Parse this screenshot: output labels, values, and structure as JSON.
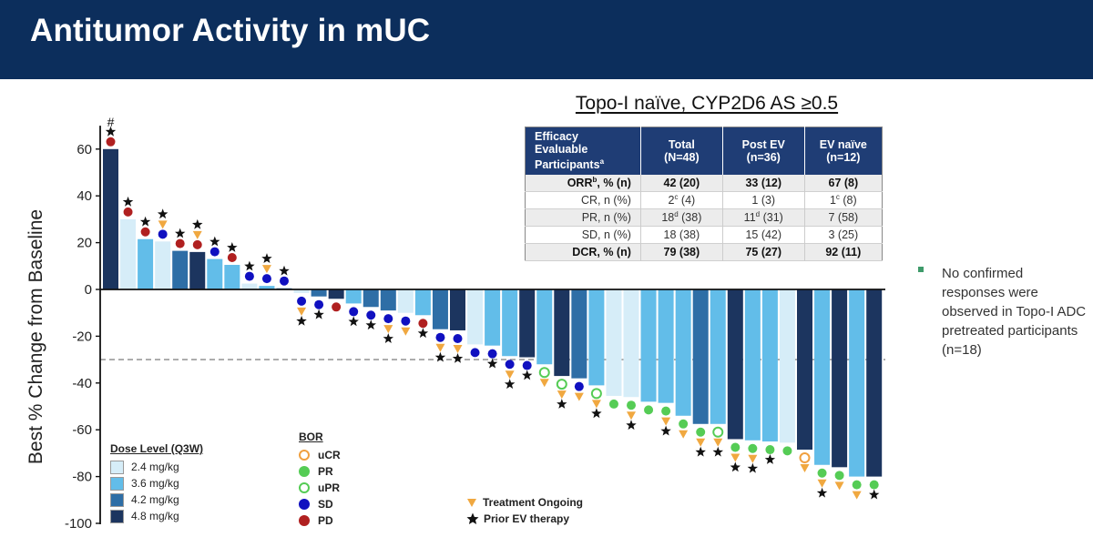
{
  "title": "Antitumor Activity in mUC",
  "colors": {
    "header_bg": "#0c2e5c",
    "dose_2_4": "#d6edf8",
    "dose_3_6": "#62bde9",
    "dose_4_2": "#2e6ea6",
    "dose_4_8": "#1c355f",
    "ucr": "#f0a040",
    "pr": "#55cc55",
    "sd": "#1010c0",
    "pd": "#b02020",
    "ongoing": "#f0a840",
    "prior_ev": "#111111"
  },
  "table": {
    "title": "Topo-I naïve, CYP2D6 AS ≥0.5",
    "header": {
      "col0_line1": "Efficacy",
      "col0_line2": "Evaluable",
      "col0_line3": "Participants",
      "col0_sup": "a",
      "col1_line1": "Total",
      "col1_line2": "(N=48)",
      "col2_line1": "Post EV",
      "col2_line2": "(n=36)",
      "col3_line1": "EV naïve",
      "col3_line2": "(n=12)"
    },
    "rows": [
      {
        "label": "ORR",
        "label_sup": "b",
        "label_tail": ", % (n)",
        "c1": "42 (20)",
        "c1_sup": "",
        "c1_tail": "",
        "c2": "33 (12)",
        "c2_sup": "",
        "c2_tail": "",
        "c3": "67 (8)",
        "c3_sup": "",
        "c3_tail": ""
      },
      {
        "label": "CR, n (%)",
        "label_sup": "",
        "label_tail": "",
        "c1": "2",
        "c1_sup": "c",
        "c1_tail": " (4)",
        "c2": "1 (3)",
        "c2_sup": "",
        "c2_tail": "",
        "c3": "1",
        "c3_sup": "c",
        "c3_tail": " (8)"
      },
      {
        "label": "PR, n (%)",
        "label_sup": "",
        "label_tail": "",
        "c1": "18",
        "c1_sup": "d",
        "c1_tail": " (38)",
        "c2": "11",
        "c2_sup": "d",
        "c2_tail": " (31)",
        "c3": "7 (58)",
        "c3_sup": "",
        "c3_tail": ""
      },
      {
        "label": "SD, n (%)",
        "label_sup": "",
        "label_tail": "",
        "c1": "18 (38)",
        "c1_sup": "",
        "c1_tail": "",
        "c2": "15 (42)",
        "c2_sup": "",
        "c2_tail": "",
        "c3": "3 (25)",
        "c3_sup": "",
        "c3_tail": ""
      },
      {
        "label": "DCR, % (n)",
        "label_sup": "",
        "label_tail": "",
        "c1": "79 (38)",
        "c1_sup": "",
        "c1_tail": "",
        "c2": "75 (27)",
        "c2_sup": "",
        "c2_tail": "",
        "c3": "92 (11)",
        "c3_sup": "",
        "c3_tail": ""
      }
    ]
  },
  "note": "No confirmed responses were observed in Topo-I ADC pretreated participants (n=18)",
  "legend_dose": {
    "title": "Dose Level (Q3W)",
    "items": [
      {
        "label": "2.4 mg/kg",
        "color": "#d6edf8"
      },
      {
        "label": "3.6 mg/kg",
        "color": "#62bde9"
      },
      {
        "label": "4.2 mg/kg",
        "color": "#2e6ea6"
      },
      {
        "label": "4.8 mg/kg",
        "color": "#1c355f"
      }
    ]
  },
  "legend_bor": {
    "title": "BOR",
    "items": [
      {
        "label": "uCR",
        "color": "#f0a040",
        "filled": false
      },
      {
        "label": "PR",
        "color": "#55cc55",
        "filled": true
      },
      {
        "label": "uPR",
        "color": "#55cc55",
        "filled": false
      },
      {
        "label": "SD",
        "color": "#1010c0",
        "filled": true
      },
      {
        "label": "PD",
        "color": "#b02020",
        "filled": true
      }
    ]
  },
  "legend_markers": {
    "ongoing": "Treatment Ongoing",
    "prior_ev": "Prior EV therapy"
  },
  "chart_data": {
    "type": "bar",
    "ylabel": "Best % Change from Baseline",
    "ylim": [
      -100,
      70
    ],
    "yticks": [
      60,
      40,
      20,
      0,
      -20,
      -40,
      -60,
      -80,
      -100
    ],
    "reference_line": -30,
    "hash_label": "#",
    "bars": [
      {
        "value": 60,
        "dose": "4.8",
        "bor": "PD",
        "ongoing": false,
        "prior_ev": true,
        "hash": true
      },
      {
        "value": 30,
        "dose": "2.4",
        "bor": "PD",
        "ongoing": false,
        "prior_ev": true
      },
      {
        "value": 21.5,
        "dose": "3.6",
        "bor": "PD",
        "ongoing": false,
        "prior_ev": true
      },
      {
        "value": 20.5,
        "dose": "2.4",
        "bor": "SD",
        "ongoing": true,
        "prior_ev": true
      },
      {
        "value": 16.5,
        "dose": "4.2",
        "bor": "PD",
        "ongoing": false,
        "prior_ev": true
      },
      {
        "value": 16,
        "dose": "4.8",
        "bor": "PD",
        "ongoing": true,
        "prior_ev": true
      },
      {
        "value": 13,
        "dose": "3.6",
        "bor": "SD",
        "ongoing": false,
        "prior_ev": true
      },
      {
        "value": 10.5,
        "dose": "3.6",
        "bor": "PD",
        "ongoing": false,
        "prior_ev": true
      },
      {
        "value": 2.5,
        "dose": "2.4",
        "bor": "SD",
        "ongoing": false,
        "prior_ev": true
      },
      {
        "value": 1.5,
        "dose": "3.6",
        "bor": "SD",
        "ongoing": true,
        "prior_ev": true
      },
      {
        "value": 0.5,
        "dose": "4.2",
        "bor": "SD",
        "ongoing": false,
        "prior_ev": true
      },
      {
        "value": -1.5,
        "dose": "2.4",
        "bor": "SD",
        "ongoing": true,
        "prior_ev": true
      },
      {
        "value": -3,
        "dose": "4.2",
        "bor": "SD",
        "ongoing": false,
        "prior_ev": true
      },
      {
        "value": -4,
        "dose": "4.8",
        "bor": "PD",
        "ongoing": false,
        "prior_ev": false
      },
      {
        "value": -6,
        "dose": "3.6",
        "bor": "SD",
        "ongoing": false,
        "prior_ev": true
      },
      {
        "value": -7.5,
        "dose": "4.2",
        "bor": "SD",
        "ongoing": false,
        "prior_ev": true
      },
      {
        "value": -9,
        "dose": "4.2",
        "bor": "SD",
        "ongoing": true,
        "prior_ev": true
      },
      {
        "value": -10,
        "dose": "2.4",
        "bor": "SD",
        "ongoing": true,
        "prior_ev": false
      },
      {
        "value": -11,
        "dose": "3.6",
        "bor": "PD",
        "ongoing": false,
        "prior_ev": true
      },
      {
        "value": -17,
        "dose": "4.2",
        "bor": "SD",
        "ongoing": true,
        "prior_ev": true
      },
      {
        "value": -17.5,
        "dose": "4.8",
        "bor": "SD",
        "ongoing": true,
        "prior_ev": true
      },
      {
        "value": -23.5,
        "dose": "2.4",
        "bor": "SD",
        "ongoing": false,
        "prior_ev": false
      },
      {
        "value": -24,
        "dose": "3.6",
        "bor": "SD",
        "ongoing": false,
        "prior_ev": true
      },
      {
        "value": -28.5,
        "dose": "3.6",
        "bor": "SD",
        "ongoing": true,
        "prior_ev": true
      },
      {
        "value": -29,
        "dose": "4.8",
        "bor": "SD",
        "ongoing": false,
        "prior_ev": true
      },
      {
        "value": -32,
        "dose": "3.6",
        "bor": "uPR",
        "ongoing": true,
        "prior_ev": false
      },
      {
        "value": -37,
        "dose": "4.8",
        "bor": "uPR",
        "ongoing": true,
        "prior_ev": true
      },
      {
        "value": -38,
        "dose": "4.2",
        "bor": "SD",
        "ongoing": true,
        "prior_ev": false
      },
      {
        "value": -41,
        "dose": "3.6",
        "bor": "uPR",
        "ongoing": true,
        "prior_ev": true
      },
      {
        "value": -45.5,
        "dose": "2.4",
        "bor": "PR",
        "ongoing": false,
        "prior_ev": false
      },
      {
        "value": -46,
        "dose": "2.4",
        "bor": "PR",
        "ongoing": true,
        "prior_ev": true
      },
      {
        "value": -48,
        "dose": "3.6",
        "bor": "PR",
        "ongoing": false,
        "prior_ev": false
      },
      {
        "value": -48.5,
        "dose": "3.6",
        "bor": "PR",
        "ongoing": true,
        "prior_ev": true
      },
      {
        "value": -54,
        "dose": "3.6",
        "bor": "PR",
        "ongoing": true,
        "prior_ev": false
      },
      {
        "value": -57.5,
        "dose": "4.2",
        "bor": "PR",
        "ongoing": true,
        "prior_ev": true
      },
      {
        "value": -57.5,
        "dose": "3.6",
        "bor": "uPR",
        "ongoing": true,
        "prior_ev": true
      },
      {
        "value": -64,
        "dose": "4.8",
        "bor": "PR",
        "ongoing": true,
        "prior_ev": true
      },
      {
        "value": -64.5,
        "dose": "3.6",
        "bor": "PR",
        "ongoing": true,
        "prior_ev": true
      },
      {
        "value": -65,
        "dose": "3.6",
        "bor": "PR",
        "ongoing": false,
        "prior_ev": true
      },
      {
        "value": -65.5,
        "dose": "2.4",
        "bor": "PR",
        "ongoing": false,
        "prior_ev": false
      },
      {
        "value": -68.5,
        "dose": "4.8",
        "bor": "uCR",
        "ongoing": true,
        "prior_ev": false
      },
      {
        "value": -75,
        "dose": "3.6",
        "bor": "PR",
        "ongoing": true,
        "prior_ev": true
      },
      {
        "value": -76,
        "dose": "4.8",
        "bor": "PR",
        "ongoing": true,
        "prior_ev": false
      },
      {
        "value": -80,
        "dose": "3.6",
        "bor": "PR",
        "ongoing": true,
        "prior_ev": false
      },
      {
        "value": -80,
        "dose": "4.8",
        "bor": "PR",
        "ongoing": false,
        "prior_ev": true
      }
    ]
  }
}
